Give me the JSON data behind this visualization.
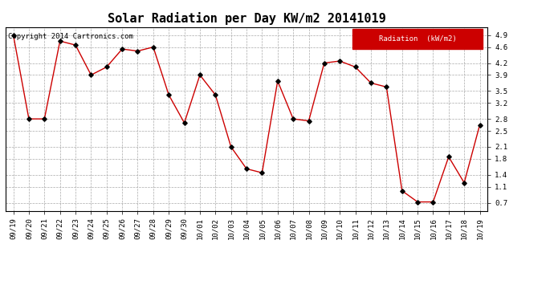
{
  "title": "Solar Radiation per Day KW/m2 20141019",
  "copyright": "Copyright 2014 Cartronics.com",
  "legend_label": "Radiation  (kW/m2)",
  "x_labels": [
    "09/19",
    "09/20",
    "09/21",
    "09/22",
    "09/23",
    "09/24",
    "09/25",
    "09/26",
    "09/27",
    "09/28",
    "09/29",
    "09/30",
    "10/01",
    "10/02",
    "10/03",
    "10/04",
    "10/05",
    "10/06",
    "10/07",
    "10/08",
    "10/09",
    "10/10",
    "10/11",
    "10/12",
    "10/13",
    "10/14",
    "10/15",
    "10/16",
    "10/17",
    "10/18",
    "10/19"
  ],
  "y_values": [
    4.9,
    2.8,
    2.8,
    4.75,
    4.65,
    3.9,
    4.1,
    4.55,
    4.5,
    4.6,
    3.4,
    2.7,
    3.9,
    3.4,
    2.1,
    1.55,
    1.45,
    3.75,
    2.8,
    2.75,
    4.2,
    4.25,
    4.1,
    3.7,
    3.6,
    1.0,
    0.72,
    0.72,
    1.85,
    1.2,
    2.65
  ],
  "y_ticks": [
    0.7,
    1.1,
    1.4,
    1.8,
    2.1,
    2.5,
    2.8,
    3.2,
    3.5,
    3.9,
    4.2,
    4.6,
    4.9
  ],
  "ylim": [
    0.5,
    5.1
  ],
  "line_color": "#cc0000",
  "marker_color": "#000000",
  "bg_color": "#ffffff",
  "plot_bg_color": "#ffffff",
  "grid_color": "#aaaaaa",
  "legend_bg": "#cc0000",
  "legend_text_color": "#ffffff",
  "title_fontsize": 11,
  "tick_fontsize": 6.5,
  "copyright_fontsize": 6.5
}
